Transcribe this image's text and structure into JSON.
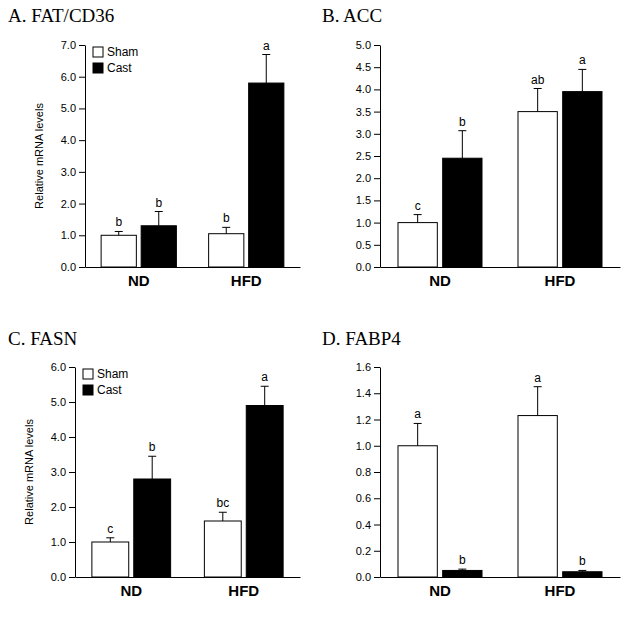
{
  "chart_data": [
    {
      "type": "bar",
      "title": "A. FAT/CD36",
      "y_label": "Relative mRNA levels",
      "categories": [
        "ND",
        "HFD"
      ],
      "series": [
        {
          "name": "Sham",
          "color": "#ffffff",
          "values": [
            1.0,
            1.05
          ],
          "errors": [
            0.12,
            0.2
          ],
          "annotations": [
            "b",
            "b"
          ]
        },
        {
          "name": "Cast",
          "color": "#000000",
          "values": [
            1.3,
            5.8
          ],
          "errors": [
            0.45,
            0.9
          ],
          "annotations": [
            "b",
            "a"
          ]
        }
      ],
      "ylim": [
        0,
        7
      ],
      "yticks": [
        {
          "value": 0,
          "label": "0.0"
        },
        {
          "value": 1,
          "label": "1.0"
        },
        {
          "value": 2,
          "label": "2.0"
        },
        {
          "value": 3,
          "label": "3.0"
        },
        {
          "value": 4,
          "label": "4.0"
        },
        {
          "value": 5,
          "label": "5.0"
        },
        {
          "value": 6,
          "label": "6.0"
        },
        {
          "value": 7,
          "label": "7.0"
        }
      ],
      "legend": "top-left"
    },
    {
      "type": "bar",
      "title": "B. ACC",
      "categories": [
        "ND",
        "HFD"
      ],
      "series": [
        {
          "name": "Sham",
          "color": "#ffffff",
          "values": [
            1.0,
            3.5
          ],
          "errors": [
            0.18,
            0.52
          ],
          "annotations": [
            "c",
            "ab"
          ]
        },
        {
          "name": "Cast",
          "color": "#000000",
          "values": [
            2.45,
            3.95
          ],
          "errors": [
            0.62,
            0.5
          ],
          "annotations": [
            "b",
            "a"
          ]
        }
      ],
      "ylim": [
        0,
        5
      ],
      "yticks": [
        {
          "value": 0,
          "label": "0.0"
        },
        0.5,
        {
          "value": 1,
          "label": "1.0"
        },
        1.5,
        {
          "value": 2,
          "label": "2.0"
        },
        2.5,
        {
          "value": 3,
          "label": "3.0"
        },
        3.5,
        {
          "value": 4,
          "label": "4.0"
        },
        4.5,
        {
          "value": 5,
          "label": "5.0"
        }
      ]
    },
    {
      "type": "bar",
      "title": "C. FASN",
      "y_label": "Relative mRNA levels",
      "categories": [
        "ND",
        "HFD"
      ],
      "series": [
        {
          "name": "Sham",
          "color": "#ffffff",
          "values": [
            1.0,
            1.6
          ],
          "errors": [
            0.12,
            0.25
          ],
          "annotations": [
            "c",
            "bc"
          ]
        },
        {
          "name": "Cast",
          "color": "#000000",
          "values": [
            2.8,
            4.9
          ],
          "errors": [
            0.65,
            0.55
          ],
          "annotations": [
            "b",
            "a"
          ]
        }
      ],
      "ylim": [
        0,
        6
      ],
      "yticks": [
        {
          "value": 0,
          "label": "0.0"
        },
        {
          "value": 1,
          "label": "1.0"
        },
        {
          "value": 2,
          "label": "2.0"
        },
        {
          "value": 3,
          "label": "3.0"
        },
        {
          "value": 4,
          "label": "4.0"
        },
        {
          "value": 5,
          "label": "5.0"
        },
        {
          "value": 6,
          "label": "6.0"
        }
      ],
      "legend": "top-left"
    },
    {
      "type": "bar",
      "title": "D. FABP4",
      "categories": [
        "ND",
        "HFD"
      ],
      "series": [
        {
          "name": "Sham",
          "color": "#ffffff",
          "values": [
            1.0,
            1.23
          ],
          "errors": [
            0.17,
            0.22
          ],
          "annotations": [
            "a",
            "a"
          ]
        },
        {
          "name": "Cast",
          "color": "#000000",
          "values": [
            0.05,
            0.04
          ],
          "errors": [
            0.01,
            0.01
          ],
          "annotations": [
            "b",
            "b"
          ]
        }
      ],
      "ylim": [
        0,
        1.6
      ],
      "yticks": [
        {
          "value": 0,
          "label": "0.0"
        },
        0.2,
        0.4,
        0.6,
        0.8,
        {
          "value": 1,
          "label": "1.0"
        },
        1.2,
        1.4,
        1.6
      ]
    }
  ]
}
